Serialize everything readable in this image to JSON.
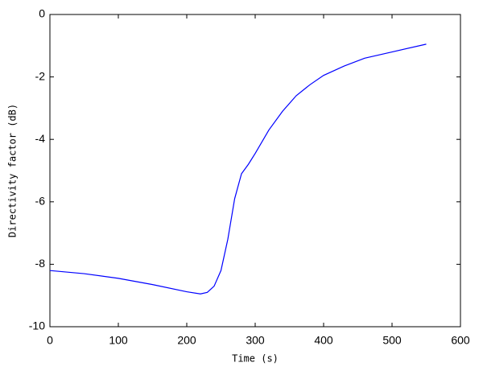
{
  "chart_data": {
    "type": "line",
    "x_label": "Time (s)",
    "y_label": "Directivity factor (dB)",
    "x": [
      0,
      50,
      100,
      150,
      200,
      220,
      230,
      240,
      250,
      260,
      270,
      280,
      290,
      300,
      320,
      340,
      360,
      380,
      400,
      430,
      460,
      500,
      550
    ],
    "series": [
      {
        "color": "#0000ff",
        "values": [
          -8.2,
          -8.3,
          -8.45,
          -8.65,
          -8.88,
          -8.95,
          -8.9,
          -8.7,
          -8.2,
          -7.2,
          -5.9,
          -5.1,
          -4.8,
          -4.45,
          -3.7,
          -3.1,
          -2.6,
          -2.25,
          -1.95,
          -1.65,
          -1.4,
          -1.2,
          -0.95
        ]
      }
    ],
    "xlim": [
      0,
      600
    ],
    "ylim": [
      -10,
      0
    ],
    "xticks": [
      0,
      100,
      200,
      300,
      400,
      500,
      600
    ],
    "yticks": [
      0,
      -2,
      -4,
      -6,
      -8,
      -10
    ]
  }
}
